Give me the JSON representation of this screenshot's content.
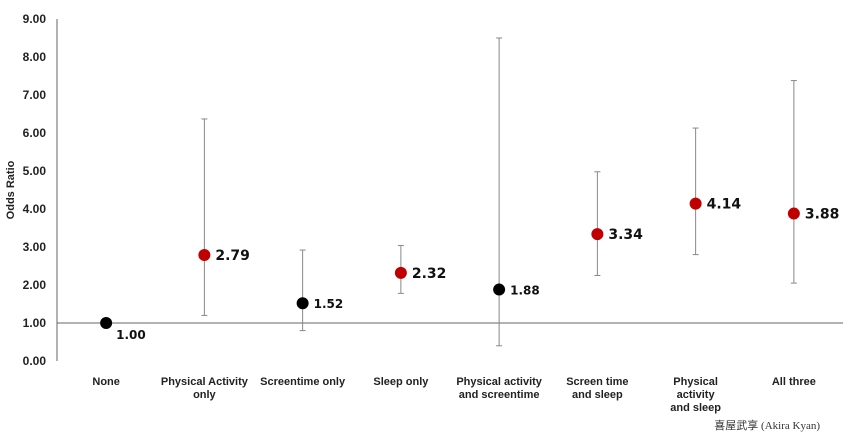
{
  "chart_data": {
    "type": "scatter",
    "title": "",
    "xlabel": "",
    "ylabel": "Odds Ratio",
    "ylim": [
      0,
      9
    ],
    "ytick_labels": [
      "0.00",
      "1.00",
      "2.00",
      "3.00",
      "4.00",
      "5.00",
      "6.00",
      "7.00",
      "8.00",
      "9.00"
    ],
    "reference_line": 1.0,
    "grid": false,
    "categories": [
      [
        "None"
      ],
      [
        "Physical Activity",
        "only"
      ],
      [
        "Screentime only"
      ],
      [
        "Sleep only"
      ],
      [
        "Physical activity",
        "and screentime"
      ],
      [
        "Screen time",
        "and sleep"
      ],
      [
        "Physical",
        "activity",
        "and sleep"
      ],
      [
        "All three"
      ]
    ],
    "values": [
      1.0,
      2.79,
      1.52,
      2.32,
      1.88,
      3.34,
      4.14,
      3.88
    ],
    "value_labels": [
      "1.00",
      "2.79",
      "1.52",
      "2.32",
      "1.88",
      "3.34",
      "4.14",
      "3.88"
    ],
    "ci_lower": [
      1.0,
      1.2,
      0.8,
      1.78,
      0.4,
      2.25,
      2.8,
      2.05
    ],
    "ci_upper": [
      1.0,
      6.37,
      2.92,
      3.04,
      8.5,
      4.98,
      6.13,
      7.38
    ],
    "significant": [
      false,
      true,
      false,
      true,
      false,
      true,
      true,
      true
    ],
    "colors": {
      "significant": "#c00000",
      "not_significant": "#000000",
      "errorbar": "#888888",
      "axis": "#666666"
    }
  },
  "credit": "喜屋武享 (Akira Kyan)"
}
